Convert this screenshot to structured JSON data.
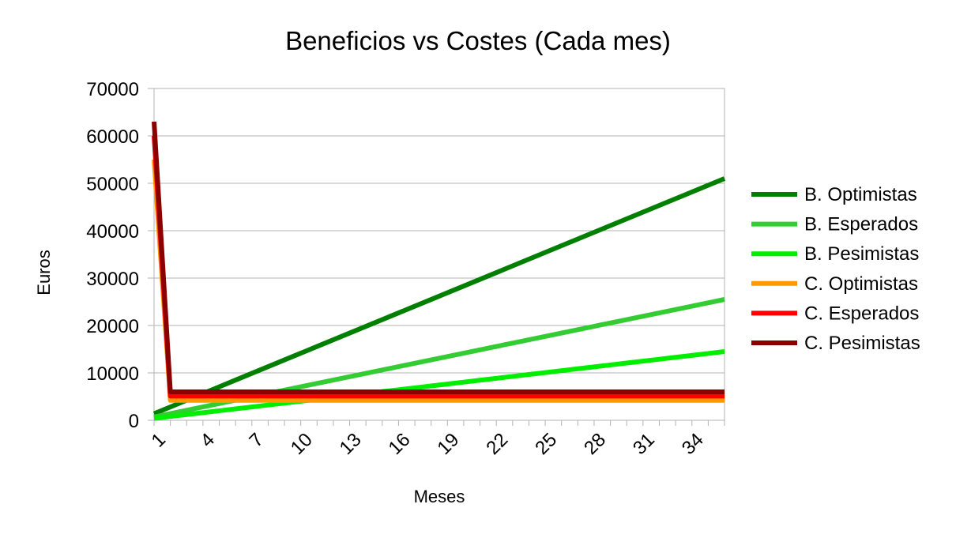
{
  "chart_data": {
    "type": "line",
    "title": "Beneficios vs Costes (Cada mes)",
    "xlabel": "Meses",
    "ylabel": "Euros",
    "x": [
      1,
      2,
      3,
      4,
      5,
      6,
      7,
      8,
      9,
      10,
      11,
      12,
      13,
      14,
      15,
      16,
      17,
      18,
      19,
      20,
      21,
      22,
      23,
      24,
      25,
      26,
      27,
      28,
      29,
      30,
      31,
      32,
      33,
      34,
      35,
      36
    ],
    "x_tick_labels": [
      "1",
      "4",
      "7",
      "10",
      "13",
      "16",
      "19",
      "22",
      "25",
      "28",
      "31",
      "34"
    ],
    "ylim": [
      0,
      70000
    ],
    "y_ticks": [
      0,
      10000,
      20000,
      30000,
      40000,
      50000,
      60000,
      70000
    ],
    "grid": "horizontal",
    "legend_position": "right",
    "series": [
      {
        "name": "B. Optimistas",
        "color": "#007f00",
        "start": 1400,
        "end": 51000
      },
      {
        "name": "B. Esperados",
        "color": "#33cc33",
        "start": 700,
        "end": 25500
      },
      {
        "name": "B. Pesimistas",
        "color": "#00ee00",
        "start": 400,
        "end": 14500
      },
      {
        "name": "C. Optimistas",
        "color": "#ff9900",
        "start": 55000,
        "rest": 4200
      },
      {
        "name": "C. Esperados",
        "color": "#ff0000",
        "start": 60000,
        "rest": 5100
      },
      {
        "name": "C. Pesimistas",
        "color": "#8b0000",
        "start": 63000,
        "rest": 6000
      }
    ]
  }
}
